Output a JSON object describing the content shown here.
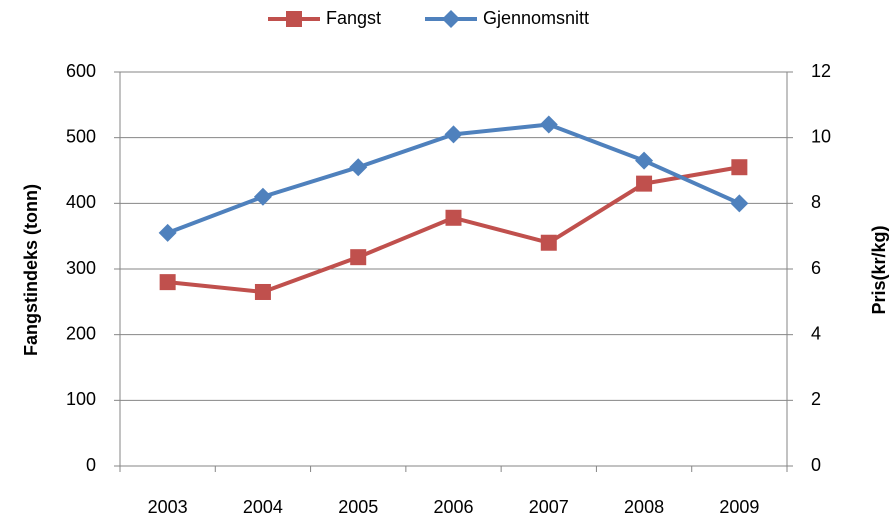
{
  "chart_data": {
    "type": "line",
    "categories": [
      "2003",
      "2004",
      "2005",
      "2006",
      "2007",
      "2008",
      "2009"
    ],
    "series": [
      {
        "name": "Fangst",
        "color": "#c0504d",
        "values": [
          280,
          265,
          318,
          378,
          340,
          430,
          455
        ]
      },
      {
        "name": "Gjennomsnitt",
        "color": "#4f81bd",
        "axis": "y2",
        "values": [
          7.1,
          8.2,
          9.1,
          10.1,
          10.4,
          9.3,
          8.0
        ]
      }
    ],
    "ylabel": "Fangstindeks (tonn)",
    "y2label": "Pris(kr/kg)",
    "ylim": [
      0,
      600
    ],
    "yticks": [
      0,
      100,
      200,
      300,
      400,
      500,
      600
    ],
    "y2lim": [
      0,
      12
    ],
    "y2ticks": [
      0,
      2,
      4,
      6,
      8,
      10,
      12
    ],
    "grid": true,
    "legend": "top"
  }
}
